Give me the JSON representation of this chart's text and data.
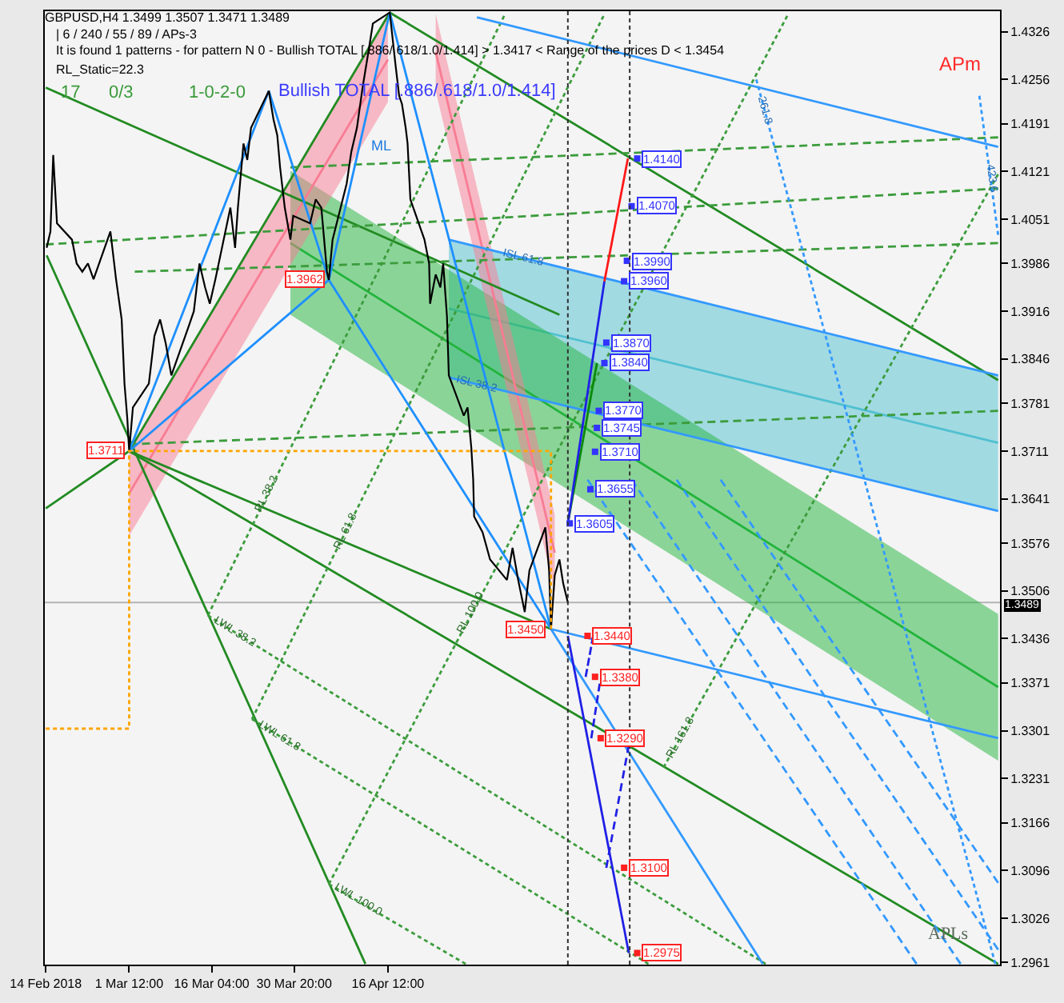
{
  "chart_data": {
    "type": "line",
    "title": "GBPUSD,H4 1.3499 1.3507 1.3471 1.3489",
    "xlim": [
      "2018-02-14T12:00",
      "2018-08-03T08:00"
    ],
    "ylim": [
      1.2958,
      1.4356
    ],
    "xticks": [
      {
        "value": "2018-02-14T16:00",
        "label": "14 Feb 2018"
      },
      {
        "value": "2018-03-01T12:00",
        "label": "1 Mar 12:00"
      },
      {
        "value": "2018-03-16T04:00",
        "label": "16 Mar 04:00"
      },
      {
        "value": "2018-03-30T20:00",
        "label": "30 Mar 20:00"
      },
      {
        "value": "2018-04-16T12:00",
        "label": "16 Apr 12:00"
      }
    ],
    "yticks": [
      1.4326,
      1.4256,
      1.4191,
      1.4121,
      1.4051,
      1.3986,
      1.3916,
      1.3846,
      1.3781,
      1.3711,
      1.3641,
      1.3576,
      1.3506,
      1.3436,
      1.3371,
      1.3301,
      1.3231,
      1.3166,
      1.3096,
      1.3026,
      1.2961
    ],
    "ref_lines": [
      {
        "axis": "y",
        "value": 1.3489,
        "label": "1.3489",
        "color": "#b4b4b4",
        "line_style": "solid"
      },
      {
        "axis": "x",
        "value": "2018-05-18T12:00",
        "color": "#303030",
        "line_style": "dotted"
      },
      {
        "axis": "x",
        "value": "2018-05-29T12:00",
        "color": "#303030",
        "line_style": "dotted"
      }
    ],
    "series": [
      {
        "color": "#50c0d0",
        "x": [
          "2018-04-27T08:00",
          "2018-08-03T00:00"
        ],
        "values": [
          1.392,
          1.3723
        ],
        "lower": [
          1.3819,
          1.3623
        ],
        "upper": [
          1.4021,
          1.3822
        ],
        "line_style": "solid"
      },
      {
        "color": "#22b43c",
        "x": [
          "2018-03-30T04:00",
          "2018-08-03T00:00"
        ],
        "values": [
          1.4016,
          1.3365
        ],
        "lower": [
          1.3911,
          1.3257
        ],
        "upper": [
          1.4122,
          1.3472
        ],
        "line_style": "solid"
      },
      {
        "color": "#f87c94",
        "x": [
          "2018-03-01T12:00",
          "2018-04-16T12:00"
        ],
        "values": [
          1.3649,
          1.4285
        ],
        "lower": [
          1.3587,
          1.4223
        ],
        "upper": [
          1.3711,
          1.4347
        ],
        "line_style": "solid"
      },
      {
        "color": "#f87c94",
        "x": [
          "2018-04-25T00:00",
          "2018-05-16T04:00"
        ],
        "values": [
          1.4296,
          1.3562
        ],
        "lower": [
          1.4239,
          1.3505
        ],
        "upper": [
          1.4352,
          1.3618
        ],
        "line_style": "solid"
      },
      {
        "color": "#228b22",
        "x": [
          "2018-02-14T16:00",
          "2018-03-01T12:00",
          "2018-04-16T20:00"
        ],
        "values": [
          1.3627,
          1.3711,
          1.4354
        ],
        "line_style": "solid"
      },
      {
        "color": "#228b22",
        "x": [
          "2018-03-01T12:00",
          "2018-05-15T12:00"
        ],
        "values": [
          1.3711,
          1.345
        ],
        "line_style": "solid"
      },
      {
        "color": "#228b22",
        "x": [
          "2018-03-01T12:00",
          "2018-08-03T00:00"
        ],
        "values": [
          1.3711,
          1.2959
        ],
        "line_style": "solid"
      },
      {
        "color": "#228b22",
        "x": [
          "2018-02-14T20:00",
          "2018-04-12T12:00"
        ],
        "values": [
          1.3998,
          1.2959
        ],
        "line_style": "solid"
      },
      {
        "color": "#228b22",
        "x": [
          "2018-02-14T16:00",
          "2018-05-17T00:00"
        ],
        "values": [
          1.4244,
          1.3911
        ],
        "line_style": "solid"
      },
      {
        "color": "#228b22",
        "x": [
          "2018-04-16T20:00",
          "2018-08-03T00:00"
        ],
        "values": [
          1.4354,
          1.3815
        ],
        "line_style": "solid"
      },
      {
        "color": "#3c9c3c",
        "x": [
          "2018-03-30T04:00",
          "2018-08-03T00:00"
        ],
        "values": [
          1.4127,
          1.4171
        ],
        "line_style": "dashed"
      },
      {
        "color": "#3c9c3c",
        "x": [
          "2018-02-14T16:00",
          "2018-08-03T00:00"
        ],
        "values": [
          1.4014,
          1.4096
        ],
        "line_style": "dashed"
      },
      {
        "color": "#3c9c3c",
        "x": [
          "2018-03-02T12:00",
          "2018-08-03T00:00"
        ],
        "values": [
          1.3974,
          1.4016
        ],
        "line_style": "dashed"
      },
      {
        "color": "#3c9c3c",
        "x": [
          "2018-03-01T12:00",
          "2018-08-03T00:00"
        ],
        "values": [
          1.3721,
          1.377
        ],
        "line_style": "dashed"
      },
      {
        "color": "#3c9c3c",
        "x": [
          "2018-03-15T12:00",
          "2018-06-22T16:00"
        ],
        "values": [
          1.347,
          1.2959
        ],
        "line_style": "dotted"
      },
      {
        "color": "#3c9c3c",
        "x": [
          "2018-03-23T08:00",
          "2018-06-01T20:00"
        ],
        "values": [
          1.3318,
          1.2959
        ],
        "line_style": "dotted"
      },
      {
        "color": "#3c9c3c",
        "x": [
          "2018-04-06T00:00",
          "2018-04-30T08:00"
        ],
        "values": [
          1.3076,
          1.2959
        ],
        "line_style": "dotted"
      },
      {
        "color": "#3c9c3c",
        "x": [
          "2018-03-15T12:00",
          "2018-05-07T04:00"
        ],
        "values": [
          1.347,
          1.4349
        ],
        "line_style": "dotted"
      },
      {
        "color": "#3c9c3c",
        "x": [
          "2018-03-23T08:00",
          "2018-05-24T20:00"
        ],
        "values": [
          1.3318,
          1.4349
        ],
        "line_style": "dotted"
      },
      {
        "color": "#3c9c3c",
        "x": [
          "2018-04-06T00:00",
          "2018-06-26T12:00"
        ],
        "values": [
          1.3076,
          1.4349
        ],
        "line_style": "dotted"
      },
      {
        "color": "#3c9c3c",
        "x": [
          "2018-06-04T12:00",
          "2018-08-03T00:00"
        ],
        "values": [
          1.3247,
          1.4117
        ],
        "line_style": "dotted"
      },
      {
        "color": "#3399ff",
        "x": [
          "2018-05-02T08:00",
          "2018-08-03T00:00"
        ],
        "values": [
          1.4347,
          1.4157
        ],
        "line_style": "solid"
      },
      {
        "color": "#3399ff",
        "x": [
          "2018-04-27T08:00",
          "2018-08-03T00:00"
        ],
        "values": [
          1.4021,
          1.3822
        ],
        "line_style": "solid"
      },
      {
        "color": "#3399ff",
        "x": [
          "2018-04-27T08:00",
          "2018-08-03T00:00"
        ],
        "values": [
          1.3819,
          1.3623
        ],
        "line_style": "solid"
      },
      {
        "color": "#3399ff",
        "x": [
          "2018-05-15T12:00",
          "2018-08-03T00:00"
        ],
        "values": [
          1.345,
          1.329
        ],
        "line_style": "solid"
      },
      {
        "color": "#3399ff",
        "x": [
          "2018-05-15T12:00",
          "2018-06-22T04:00"
        ],
        "values": [
          1.345,
          1.2959
        ],
        "line_style": "solid"
      },
      {
        "color": "#3399ff",
        "x": [
          "2018-05-22T00:00",
          "2018-07-19T12:00"
        ],
        "values": [
          1.3669,
          1.2959
        ],
        "line_style": "dashed"
      },
      {
        "color": "#3399ff",
        "x": [
          "2018-05-29T20:00",
          "2018-07-27T08:00"
        ],
        "values": [
          1.3669,
          1.2959
        ],
        "line_style": "dashed"
      },
      {
        "color": "#3399ff",
        "x": [
          "2018-06-06T20:00",
          "2018-08-03T00:00"
        ],
        "values": [
          1.3669,
          1.298
        ],
        "line_style": "dashed"
      },
      {
        "color": "#3399ff",
        "x": [
          "2018-06-14T16:00",
          "2018-08-03T00:00"
        ],
        "values": [
          1.3669,
          1.3078
        ],
        "line_style": "dashed"
      },
      {
        "color": "#3399ff",
        "x": [
          "2018-06-21T00:00",
          "2018-08-02T12:00"
        ],
        "values": [
          1.4256,
          1.2959
        ],
        "line_style": "dotted"
      },
      {
        "color": "#3399ff",
        "x": [
          "2018-07-30T16:00",
          "2018-08-03T00:00"
        ],
        "values": [
          1.4232,
          1.4028
        ],
        "line_style": "dotted"
      },
      {
        "color": "#1e90ff",
        "x": [
          "2018-03-01T12:00",
          "2018-03-26T08:00",
          "2018-04-06T00:00",
          "2018-04-16T20:00",
          "2018-05-15T12:00"
        ],
        "values": [
          1.3711,
          1.4239,
          1.3962,
          1.4354,
          1.345
        ],
        "line_style": "solid"
      },
      {
        "color": "#1e90ff",
        "x": [
          "2018-03-01T12:00",
          "2018-04-06T00:00",
          "2018-05-15T12:00"
        ],
        "values": [
          1.3711,
          1.3962,
          1.345
        ],
        "line_style": "solid"
      },
      {
        "color": "#000000",
        "x": [
          "2018-02-14T20:00",
          "2018-02-15T12:00",
          "2018-02-16T00:00",
          "2018-02-16T16:00",
          "2018-02-19T08:00",
          "2018-02-20T04:00",
          "2018-02-21T04:00",
          "2018-02-22T04:00",
          "2018-02-23T04:00",
          "2018-02-26T04:00",
          "2018-02-27T04:00",
          "2018-02-28T04:00",
          "2018-02-28T16:00",
          "2018-03-01T04:00",
          "2018-03-01T12:00",
          "2018-03-02T04:00",
          "2018-03-05T00:00",
          "2018-03-06T00:00",
          "2018-03-07T00:00",
          "2018-03-08T00:00",
          "2018-03-09T00:00",
          "2018-03-12T00:00",
          "2018-03-13T00:00",
          "2018-03-14T00:00",
          "2018-03-15T00:00",
          "2018-03-15T20:00",
          "2018-03-16T20:00",
          "2018-03-19T12:00",
          "2018-03-20T08:00",
          "2018-03-20T20:00",
          "2018-03-21T20:00",
          "2018-03-22T12:00",
          "2018-03-23T04:00",
          "2018-03-26T08:00",
          "2018-03-27T04:00",
          "2018-03-27T20:00",
          "2018-03-28T08:00",
          "2018-03-29T04:00",
          "2018-03-30T04:00",
          "2018-03-30T16:00",
          "2018-04-02T16:00",
          "2018-04-03T16:00",
          "2018-04-04T16:00",
          "2018-04-05T16:00",
          "2018-04-06T00:00",
          "2018-04-06T16:00",
          "2018-04-09T04:00",
          "2018-04-10T00:00",
          "2018-04-11T00:00",
          "2018-04-12T00:00",
          "2018-04-13T04:00",
          "2018-04-13T20:00",
          "2018-04-16T20:00",
          "2018-04-17T20:00",
          "2018-04-18T12:00",
          "2018-04-19T00:00",
          "2018-04-19T16:00",
          "2018-04-20T00:00",
          "2018-04-20T12:00",
          "2018-04-23T00:00",
          "2018-04-23T20:00",
          "2018-04-24T00:00",
          "2018-04-25T00:00",
          "2018-04-25T20:00",
          "2018-04-26T08:00",
          "2018-04-27T00:00",
          "2018-04-27T08:00",
          "2018-04-30T00:00",
          "2018-04-30T16:00",
          "2018-05-01T08:00",
          "2018-05-01T16:00",
          "2018-05-01T20:00",
          "2018-05-03T08:00",
          "2018-05-04T16:00",
          "2018-05-07T16:00",
          "2018-05-08T16:00",
          "2018-05-09T16:00",
          "2018-05-10T20:00",
          "2018-05-11T16:00",
          "2018-05-14T12:00",
          "2018-05-15T04:00",
          "2018-05-15T12:00",
          "2018-05-16T04:00",
          "2018-05-17T00:00",
          "2018-05-17T16:00",
          "2018-05-18T12:00"
        ],
        "values": [
          1.4009,
          1.4033,
          1.4145,
          1.4045,
          1.4021,
          1.3986,
          1.3974,
          1.3986,
          1.3963,
          1.4033,
          1.3963,
          1.3904,
          1.381,
          1.3759,
          1.3711,
          1.3775,
          1.381,
          1.388,
          1.3904,
          1.3869,
          1.3822,
          1.3892,
          1.3916,
          1.3986,
          1.3951,
          1.3927,
          1.3963,
          1.4068,
          1.4009,
          1.4068,
          1.4162,
          1.4138,
          1.4185,
          1.4239,
          1.4197,
          1.4174,
          1.4127,
          1.4068,
          1.4021,
          1.4056,
          1.4045,
          1.408,
          1.4068,
          1.3974,
          1.3962,
          1.4021,
          1.4103,
          1.415,
          1.4185,
          1.4244,
          1.4303,
          1.4338,
          1.4354,
          1.4279,
          1.4232,
          1.422,
          1.4185,
          1.4162,
          1.408,
          1.4021,
          1.3986,
          1.3927,
          1.397,
          1.3951,
          1.3986,
          1.3909,
          1.3822,
          1.3763,
          1.3775,
          1.3716,
          1.3669,
          1.3615,
          1.3592,
          1.3552,
          1.3522,
          1.3569,
          1.3522,
          1.3475,
          1.3536,
          1.3599,
          1.3536,
          1.345,
          1.3529,
          1.3552,
          1.3517,
          1.3489
        ]
      },
      {
        "color": "#2020e6",
        "x": [
          "2018-05-18T12:00",
          "2018-05-29T08:00"
        ],
        "values": [
          1.344,
          1.2975
        ],
        "line_style": "solid"
      },
      {
        "color": "#2020e6",
        "x": [
          "2018-05-21T16:00",
          "2018-05-23T00:00"
        ],
        "values": [
          1.338,
          1.344
        ],
        "line_style": "dashed"
      },
      {
        "color": "#2020e6",
        "x": [
          "2018-05-22T16:00",
          "2018-05-24T04:00"
        ],
        "values": [
          1.329,
          1.337
        ],
        "line_style": "dashed"
      },
      {
        "color": "#2020e6",
        "x": [
          "2018-05-25T08:00",
          "2018-05-29T08:00"
        ],
        "values": [
          1.31,
          1.328
        ],
        "line_style": "dashed"
      },
      {
        "color": "#0a8a0a",
        "x": [
          "2018-05-18T12:00",
          "2018-05-23T16:00"
        ],
        "values": [
          1.3605,
          1.384
        ],
        "line_style": "solid"
      },
      {
        "color": "#2020e6",
        "x": [
          "2018-05-18T12:00",
          "2018-05-25T00:00"
        ],
        "values": [
          1.3605,
          1.396
        ],
        "line_style": "solid"
      },
      {
        "color": "#ff1a1a",
        "x": [
          "2018-05-25T00:00",
          "2018-05-29T04:00"
        ],
        "values": [
          1.396,
          1.414
        ],
        "line_style": "solid"
      },
      {
        "color": "#ffa500",
        "x": [
          "2018-02-14T16:00",
          "2018-03-01T12:00",
          "2018-03-01T12:00",
          "2018-05-15T12:00",
          "2018-05-15T12:00"
        ],
        "values": [
          1.3304,
          1.3304,
          1.3711,
          1.3711,
          1.345
        ],
        "line_style": "dotted"
      },
      {
        "type": "scatter",
        "color": "#3333ff",
        "marker": "square",
        "x": [
          "2018-05-18T20:00",
          "2018-05-22T12:00",
          "2018-05-23T08:00",
          "2018-05-23T16:00",
          "2018-05-24T00:00",
          "2018-05-25T00:00",
          "2018-05-25T08:00",
          "2018-05-28T12:00",
          "2018-05-29T00:00",
          "2018-05-29T20:00",
          "2018-05-30T20:00"
        ],
        "values": [
          1.3605,
          1.3655,
          1.371,
          1.3745,
          1.377,
          1.384,
          1.387,
          1.396,
          1.399,
          1.407,
          1.414
        ],
        "value_labels": [
          "1.3605",
          "1.3655",
          "1.3710",
          "1.3745",
          "1.3770",
          "1.3840",
          "1.3870",
          "1.3960",
          "1.3990",
          "1.4070",
          "1.4140"
        ]
      },
      {
        "type": "scatter",
        "color": "#ff2020",
        "marker": "square",
        "x": [
          "2018-05-22T00:00",
          "2018-05-23T08:00",
          "2018-05-24T08:00",
          "2018-05-28T12:00",
          "2018-05-30T20:00"
        ],
        "values": [
          1.344,
          1.338,
          1.329,
          1.31,
          1.2975
        ],
        "value_labels": [
          "1.3440",
          "1.3380",
          "1.3290",
          "1.3100",
          "1.2975"
        ]
      }
    ],
    "annotations": [
      "| 6 / 240 / 55 / 89 / APs-3",
      "It is found 1 patterns - for pattern N 0 - Bullish TOTAL [.886/.618/1.0/1.414] > 1.3417 < Range of the prices D < 1.3454",
      "RL_Static=22.3",
      "17",
      "0/3",
      "1-0-2-0",
      "APm",
      "APLs",
      "ML",
      {
        "text": "Bullish TOTAL [.886/.618/1.0/1.414]",
        "x": "2018-03-26T08:00",
        "y": 1.4239
      },
      {
        "text": "1.3711",
        "x": "2018-03-01T12:00",
        "y": 1.3711
      },
      {
        "text": "1.3962",
        "x": "2018-04-06T00:00",
        "y": 1.3962
      },
      {
        "text": "1.3450",
        "x": "2018-05-15T12:00",
        "y": 1.345
      },
      {
        "text": "LWL 38.2",
        "x": "2018-03-20T08:00",
        "y": 1.3445
      },
      {
        "text": "LWL 61.8",
        "x": "2018-03-28T04:00",
        "y": 1.3293
      },
      {
        "text": "LWL 100.0",
        "x": "2018-04-11T00:00",
        "y": 1.3052
      },
      {
        "text": "RL 38.2",
        "x": "2018-03-26T04:00",
        "y": 1.3648
      },
      {
        "text": "RL 61.8",
        "x": "2018-04-09T00:00",
        "y": 1.3593
      },
      {
        "text": "RL 100.0",
        "x": "2018-05-01T08:00",
        "y": 1.3472
      },
      {
        "text": "RL 161.8",
        "x": "2018-06-07T12:00",
        "y": 1.3291
      },
      {
        "text": "ISL 61.8",
        "x": "2018-05-10T12:00",
        "y": 1.3994
      },
      {
        "text": "ISL 38.2",
        "x": "2018-05-02T04:00",
        "y": 1.3809
      },
      {
        "text": "261.8",
        "x": "2018-06-22T12:00",
        "y": 1.421
      },
      {
        "text": "423.6",
        "x": "2018-08-01T16:00",
        "y": 1.411
      }
    ]
  }
}
